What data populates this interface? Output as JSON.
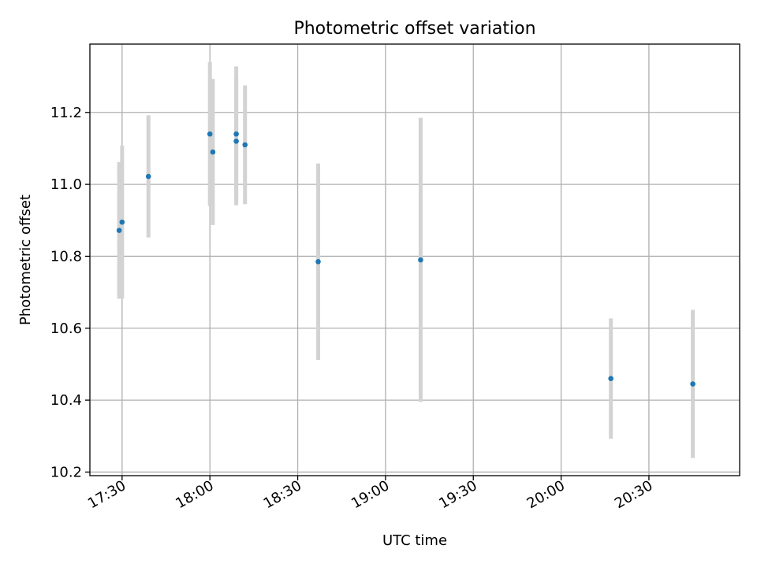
{
  "chart_data": {
    "type": "scatter",
    "title": "Photometric offset variation",
    "xlabel": "UTC time",
    "ylabel": "Photometric offset",
    "x_tick_labels": [
      "17:30",
      "18:00",
      "18:30",
      "19:00",
      "19:30",
      "20:00",
      "20:30"
    ],
    "y_tick_labels": [
      "10.2",
      "10.4",
      "10.6",
      "10.8",
      "11.0",
      "11.2"
    ],
    "xlim": [
      "17:19",
      "21:01"
    ],
    "ylim": [
      10.19,
      11.39
    ],
    "grid": true,
    "legend": "none",
    "colors": {
      "point": "#1f77b4",
      "errorbar": "#d3d3d3",
      "grid": "#b0b0b0"
    },
    "points": [
      {
        "x": "17:29",
        "y": 10.872,
        "err": 0.19
      },
      {
        "x": "17:30",
        "y": 10.895,
        "err": 0.213
      },
      {
        "x": "17:39",
        "y": 11.022,
        "err": 0.17
      },
      {
        "x": "18:00",
        "y": 11.14,
        "err": 0.2
      },
      {
        "x": "18:01",
        "y": 11.09,
        "err": 0.203
      },
      {
        "x": "18:09",
        "y": 11.14,
        "err": 0.188
      },
      {
        "x": "18:09",
        "y": 11.12,
        "err": 0.178
      },
      {
        "x": "18:12",
        "y": 11.11,
        "err": 0.165
      },
      {
        "x": "18:37",
        "y": 10.785,
        "err": 0.273
      },
      {
        "x": "19:12",
        "y": 10.79,
        "err": 0.395
      },
      {
        "x": "20:17",
        "y": 10.46,
        "err": 0.167
      },
      {
        "x": "20:45",
        "y": 10.445,
        "err": 0.206
      }
    ]
  }
}
